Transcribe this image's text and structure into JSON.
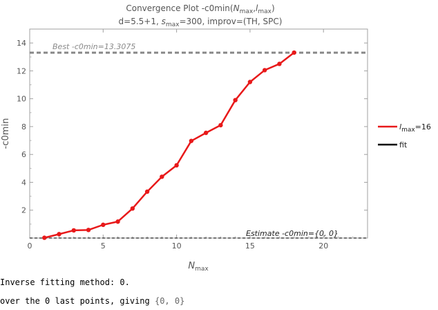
{
  "chart_data": {
    "type": "line",
    "title": {
      "main_pre": "Convergence Plot -c0min(",
      "main_n": "N",
      "main_n_sub": "max",
      "main_mid": ",",
      "main_l": "l",
      "main_l_sub": "max",
      "main_post": ")"
    },
    "subtitle": {
      "pre": "d=5.5+1, ",
      "s": "s",
      "s_sub": "max",
      "post": "=300, improv=(TH, SPC)"
    },
    "xlabel": {
      "main": "N",
      "sub": "max"
    },
    "ylabel": "-c0min",
    "xlim": [
      0,
      23
    ],
    "ylim": [
      0,
      15
    ],
    "x_ticks": [
      0,
      5,
      10,
      15,
      20
    ],
    "y_ticks": [
      2,
      4,
      6,
      8,
      10,
      12,
      14
    ],
    "series": [
      {
        "legend_main": "l",
        "legend_sub": "max",
        "legend_post": "=16",
        "color": "#e8191a",
        "x": [
          1,
          2,
          3,
          4,
          5,
          6,
          7,
          8,
          9,
          10,
          11,
          12,
          13,
          14,
          15,
          16,
          17,
          18
        ],
        "y": [
          0.02,
          0.28,
          0.55,
          0.58,
          0.95,
          1.18,
          2.12,
          3.33,
          4.4,
          5.22,
          6.97,
          7.55,
          8.1,
          9.9,
          11.2,
          12.05,
          12.5,
          13.31
        ]
      }
    ],
    "fit": {
      "label": "fit",
      "color": "#000000"
    },
    "best": {
      "value": 13.3075,
      "label": "Best -c0min=13.3075",
      "color": "#888888"
    },
    "estimate": {
      "value": 0,
      "label": "Estimate -c0min={0, 0}",
      "color": "#222222"
    },
    "legend_position": "right"
  },
  "console": {
    "line1": "Inverse fitting method: 0.",
    "line2_pre": "over the 0 last points, giving ",
    "line2_value": "{0, 0}"
  }
}
